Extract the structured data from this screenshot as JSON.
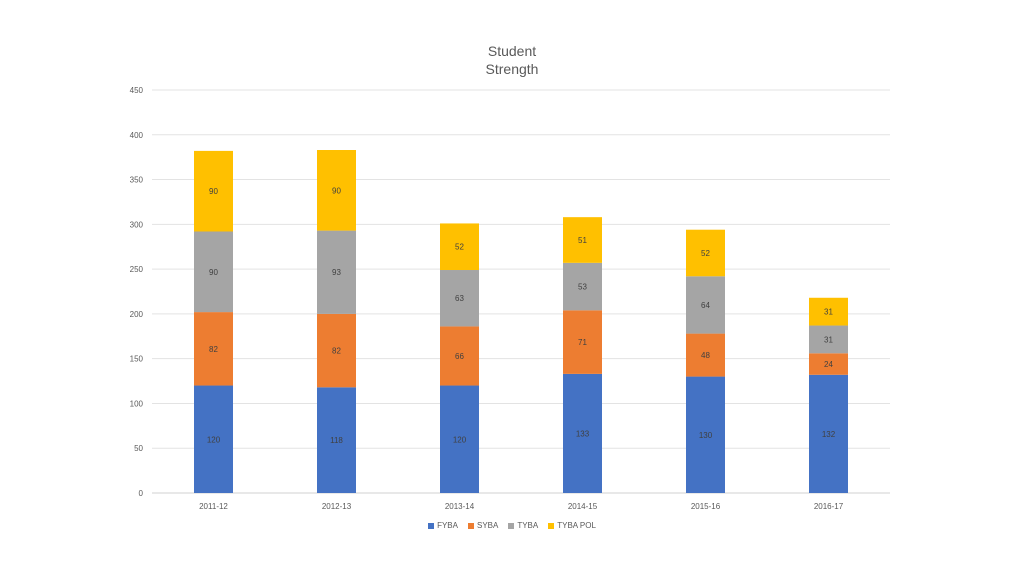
{
  "chart_data": {
    "type": "bar",
    "stacked": true,
    "title_lines": [
      "Student",
      "Strength"
    ],
    "xlabel": "",
    "ylabel": "",
    "ylim": [
      0,
      450
    ],
    "yticks": [
      "0",
      "50",
      "100",
      "150",
      "200",
      "250",
      "300",
      "350",
      "400",
      "450"
    ],
    "grid": true,
    "legend_position": "bottom",
    "categories": [
      "2011-12",
      "2012-13",
      "2013-14",
      "2014-15",
      "2015-16",
      "2016-17"
    ],
    "series": [
      {
        "name": "FYBA",
        "color": "#4472C4",
        "values": [
          120,
          118,
          120,
          133,
          130,
          132
        ]
      },
      {
        "name": "SYBA",
        "color": "#ED7D31",
        "values": [
          82,
          82,
          66,
          71,
          48,
          24
        ]
      },
      {
        "name": "TYBA",
        "color": "#A5A5A5",
        "values": [
          90,
          93,
          63,
          53,
          64,
          31
        ]
      },
      {
        "name": "TYBA POL",
        "color": "#FFC000",
        "values": [
          90,
          90,
          52,
          51,
          52,
          31
        ]
      }
    ]
  }
}
